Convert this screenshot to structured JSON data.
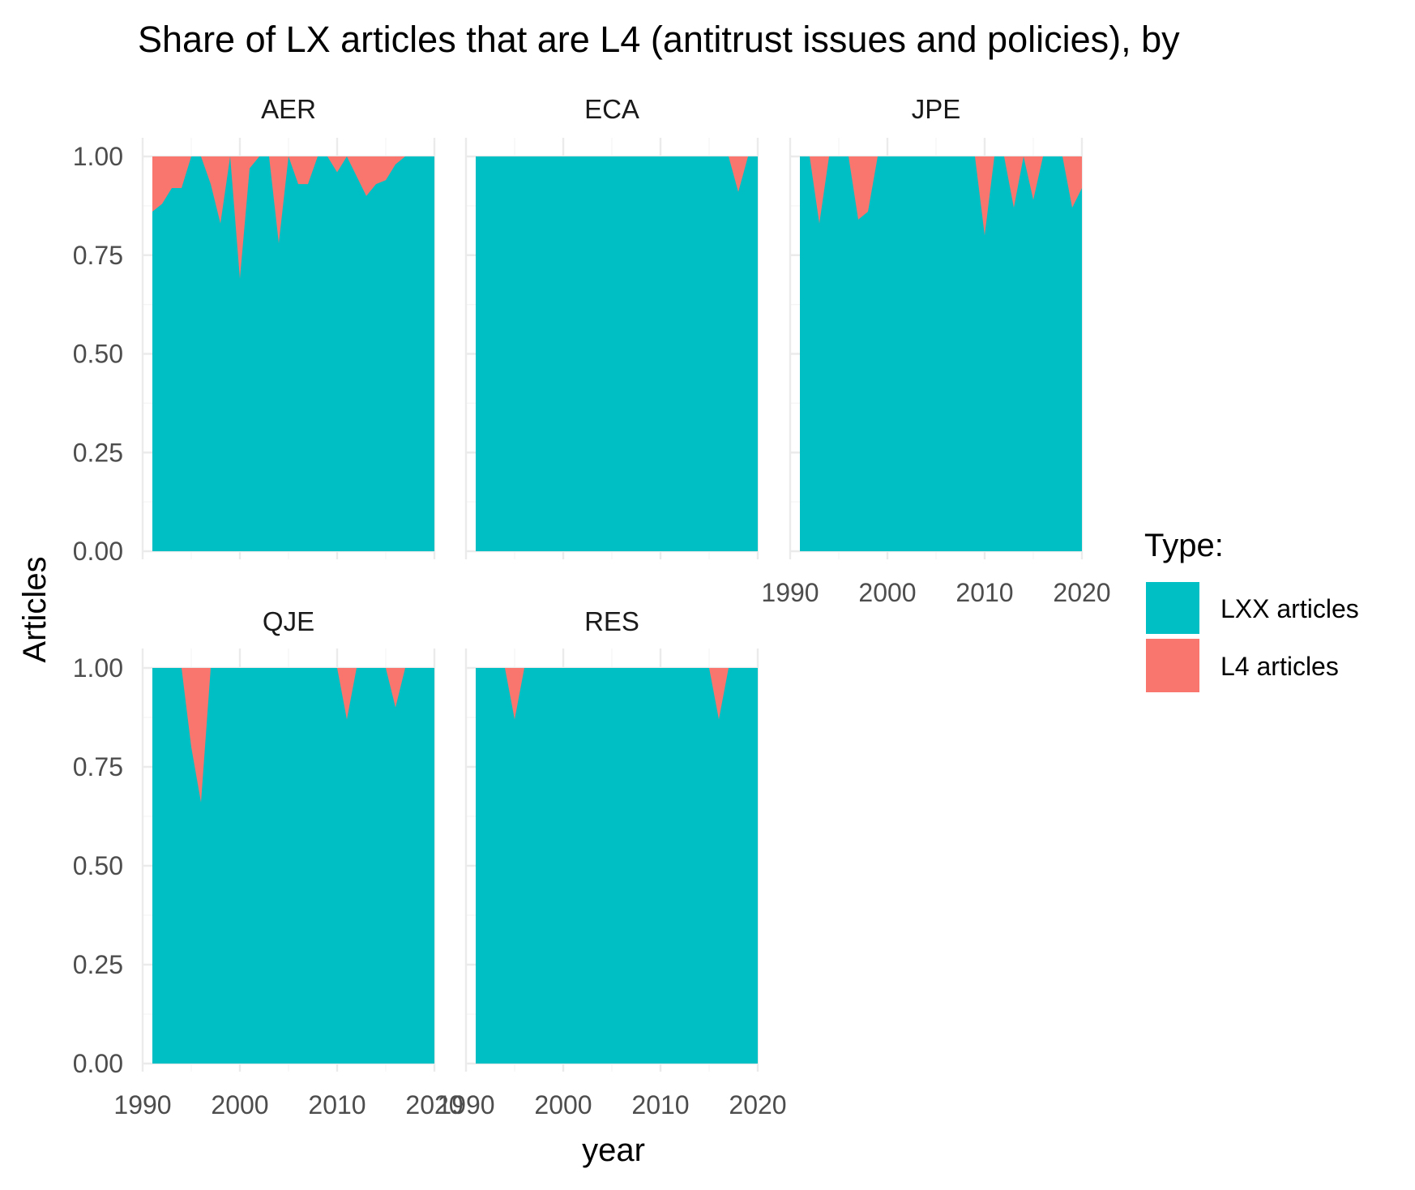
{
  "chart_data": {
    "type": "area",
    "title": "Share of LX articles that are L4 (antitrust issues and policies), by",
    "xlabel": "year",
    "ylabel": "Articles",
    "xlim": [
      1990,
      2020
    ],
    "ylim": [
      0,
      1
    ],
    "x_ticks": [
      "1990",
      "2000",
      "2010",
      "2020"
    ],
    "y_ticks": [
      "0.00",
      "0.25",
      "0.50",
      "0.75",
      "1.00"
    ],
    "legend": {
      "title": "Type:",
      "position": "right",
      "entries": [
        {
          "label": "LXX articles",
          "color": "#00BFC4"
        },
        {
          "label": "L4 articles",
          "color": "#F8766D"
        }
      ]
    },
    "colors": {
      "LXX articles": "#00BFC4",
      "L4 articles": "#F8766D"
    },
    "stacked_fill": true,
    "grid": true,
    "facets": [
      {
        "name": "AER",
        "series": [
          {
            "name": "LXX articles",
            "x": [
              1991,
              1992,
              1993,
              1994,
              1995,
              1996,
              1997,
              1998,
              1999,
              2000,
              2001,
              2002,
              2003,
              2004,
              2005,
              2006,
              2007,
              2008,
              2009,
              2010,
              2011,
              2012,
              2013,
              2014,
              2015,
              2016,
              2017,
              2018,
              2019,
              2020
            ],
            "values": [
              0.86,
              0.88,
              0.92,
              0.92,
              1.0,
              1.0,
              0.93,
              0.83,
              1.0,
              0.69,
              0.97,
              1.0,
              1.0,
              0.78,
              1.0,
              0.93,
              0.93,
              1.0,
              1.0,
              0.96,
              1.0,
              0.95,
              0.9,
              0.93,
              0.94,
              0.98,
              1.0,
              1.0,
              1.0,
              1.0
            ]
          }
        ]
      },
      {
        "name": "ECA",
        "series": [
          {
            "name": "LXX articles",
            "x": [
              1991,
              1992,
              1993,
              1994,
              1995,
              1996,
              1997,
              1998,
              1999,
              2000,
              2001,
              2002,
              2003,
              2004,
              2005,
              2006,
              2007,
              2008,
              2009,
              2010,
              2011,
              2012,
              2013,
              2014,
              2015,
              2016,
              2017,
              2018,
              2019,
              2020
            ],
            "values": [
              1,
              1,
              1,
              1,
              1,
              1,
              1,
              1,
              1,
              1,
              1,
              1,
              1,
              1,
              1,
              1,
              1,
              1,
              1,
              1,
              1,
              1,
              1,
              1,
              1,
              1,
              1,
              0.91,
              1,
              1
            ]
          }
        ]
      },
      {
        "name": "JPE",
        "series": [
          {
            "name": "LXX articles",
            "x": [
              1991,
              1992,
              1993,
              1994,
              1995,
              1996,
              1997,
              1998,
              1999,
              2000,
              2001,
              2002,
              2003,
              2004,
              2005,
              2006,
              2007,
              2008,
              2009,
              2010,
              2011,
              2012,
              2013,
              2014,
              2015,
              2016,
              2017,
              2018,
              2019,
              2020
            ],
            "values": [
              1.0,
              1.0,
              0.83,
              1.0,
              1.0,
              1.0,
              0.84,
              0.86,
              1.0,
              1.0,
              1.0,
              1.0,
              1.0,
              1.0,
              1.0,
              1.0,
              1.0,
              1.0,
              1.0,
              0.8,
              1.0,
              1.0,
              0.87,
              1.0,
              0.89,
              1.0,
              1.0,
              1.0,
              0.87,
              0.92
            ]
          }
        ]
      },
      {
        "name": "QJE",
        "series": [
          {
            "name": "LXX articles",
            "x": [
              1991,
              1992,
              1993,
              1994,
              1995,
              1996,
              1997,
              1998,
              1999,
              2000,
              2001,
              2002,
              2003,
              2004,
              2005,
              2006,
              2007,
              2008,
              2009,
              2010,
              2011,
              2012,
              2013,
              2014,
              2015,
              2016,
              2017,
              2018,
              2019,
              2020
            ],
            "values": [
              1,
              1,
              1,
              1,
              0.8,
              0.66,
              1,
              1,
              1,
              1,
              1,
              1,
              1,
              1,
              1,
              1,
              1,
              1,
              1,
              1,
              0.87,
              1,
              1,
              1,
              1,
              0.9,
              1,
              1,
              1,
              1
            ]
          }
        ]
      },
      {
        "name": "RES",
        "series": [
          {
            "name": "LXX articles",
            "x": [
              1991,
              1992,
              1993,
              1994,
              1995,
              1996,
              1997,
              1998,
              1999,
              2000,
              2001,
              2002,
              2003,
              2004,
              2005,
              2006,
              2007,
              2008,
              2009,
              2010,
              2011,
              2012,
              2013,
              2014,
              2015,
              2016,
              2017,
              2018,
              2019,
              2020
            ],
            "values": [
              1,
              1,
              1,
              1,
              0.87,
              1,
              1,
              1,
              1,
              1,
              1,
              1,
              1,
              1,
              1,
              1,
              1,
              1,
              1,
              1,
              1,
              1,
              1,
              1,
              1,
              0.87,
              1,
              1,
              1,
              1
            ]
          }
        ]
      }
    ]
  }
}
